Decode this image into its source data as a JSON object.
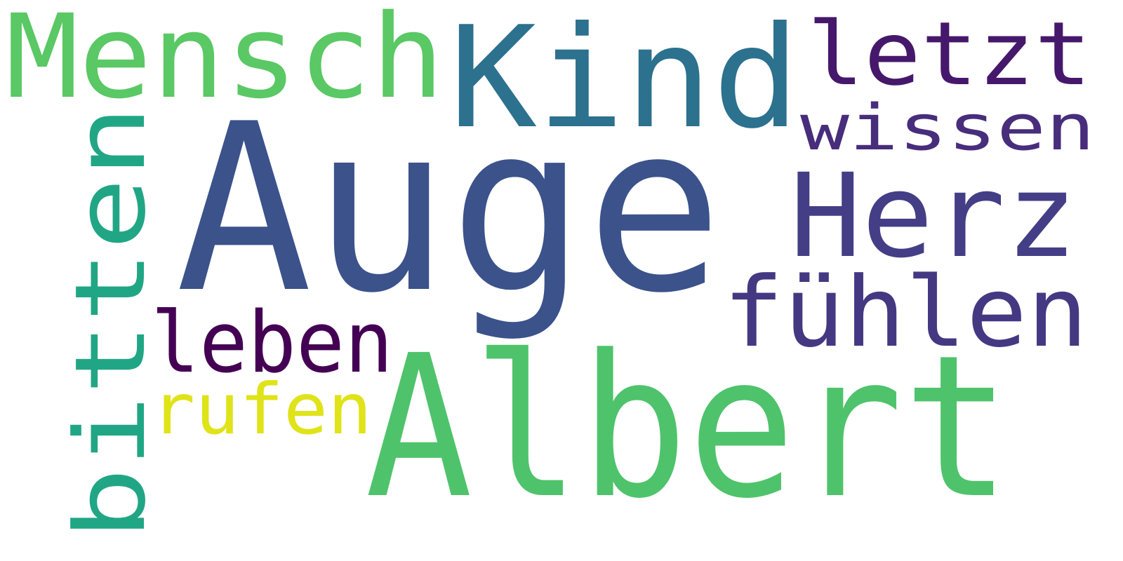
{
  "words": [
    {
      "text": "Auge",
      "color": "#3b528b"
    },
    {
      "text": "Albert",
      "color": "#4ec36b"
    },
    {
      "text": "Kind",
      "color": "#2c718e"
    },
    {
      "text": "Mensch",
      "color": "#5ac864"
    },
    {
      "text": "Herz",
      "color": "#433e85"
    },
    {
      "text": "letzt",
      "color": "#46186b"
    },
    {
      "text": "wissen",
      "color": "#472d7b"
    },
    {
      "text": "fühlen",
      "color": "#453882"
    },
    {
      "text": "bitten",
      "color": "#21a685"
    },
    {
      "text": "leben",
      "color": "#440154"
    },
    {
      "text": "rufen",
      "color": "#dfe318"
    }
  ]
}
